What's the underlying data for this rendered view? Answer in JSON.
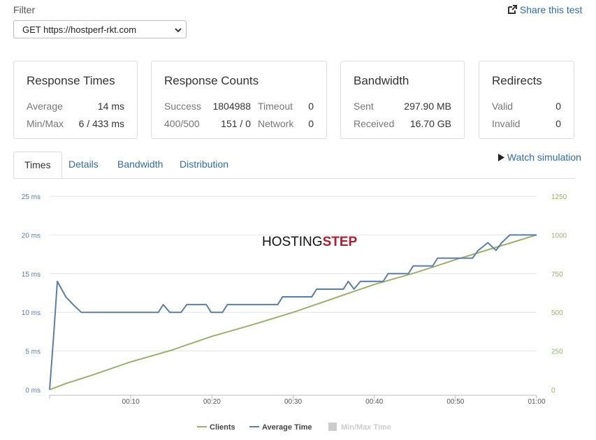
{
  "filter": {
    "label": "Filter",
    "selected": "GET https://hostperf-rkt.com"
  },
  "share": "Share this test",
  "cards": [
    {
      "title": "Response Times",
      "rows": [
        [
          "Average",
          "14 ms"
        ],
        [
          "Min/Max",
          "6 / 433 ms"
        ]
      ]
    },
    {
      "title": "Response Counts",
      "rows": [
        [
          "Success",
          "1804988",
          "Timeout",
          "0"
        ],
        [
          "400/500",
          "151 / 0",
          "Network",
          "0"
        ]
      ]
    },
    {
      "title": "Bandwidth",
      "rows": [
        [
          "Sent",
          "297.90 MB"
        ],
        [
          "Received",
          "16.70 GB"
        ]
      ]
    },
    {
      "title": "Redirects",
      "rows": [
        [
          "Valid",
          "0"
        ],
        [
          "Invalid",
          "0"
        ]
      ]
    }
  ],
  "tabs": [
    "Times",
    "Details",
    "Bandwidth",
    "Distribution"
  ],
  "active_tab": "Times",
  "watch": "Watch simulation",
  "watermark": [
    "HOSTING",
    "STEP"
  ],
  "chart_data": {
    "type": "line",
    "xlim": [
      0,
      60
    ],
    "xticks": [
      {
        "value": 10,
        "label": "00:10"
      },
      {
        "value": 20,
        "label": "00:20"
      },
      {
        "value": 30,
        "label": "00:30"
      },
      {
        "value": 40,
        "label": "00:40"
      },
      {
        "value": 50,
        "label": "00:50"
      },
      {
        "value": 60,
        "label": "01:00"
      }
    ],
    "ylim": [
      0,
      25
    ],
    "yticks": [
      {
        "value": 0,
        "label": "0 ms"
      },
      {
        "value": 5,
        "label": "5 ms"
      },
      {
        "value": 10,
        "label": "10 ms"
      },
      {
        "value": 15,
        "label": "15 ms"
      },
      {
        "value": 20,
        "label": "20 ms"
      },
      {
        "value": 25,
        "label": "25 ms"
      }
    ],
    "y2lim": [
      0,
      1250
    ],
    "y2ticks": [
      0,
      250,
      500,
      750,
      1000,
      1250
    ],
    "grid": true,
    "series": [
      {
        "name": "Clients",
        "color": "#9bb06b",
        "axis": "y2",
        "x": [
          0,
          2,
          5,
          10,
          15,
          20,
          25,
          30,
          35,
          40,
          45,
          50,
          55,
          60
        ],
        "values": [
          0,
          40,
          90,
          180,
          255,
          345,
          420,
          500,
          590,
          680,
          755,
          840,
          920,
          1000
        ]
      },
      {
        "name": "Average Time",
        "color": "#5a7fa6",
        "axis": "y",
        "x": [
          0,
          0.5,
          0.95,
          2,
          2.9,
          3.9,
          13.4,
          14,
          14.8,
          16.2,
          16.9,
          19.3,
          19.9,
          21.3,
          21.9,
          28.1,
          28.7,
          32.3,
          32.9,
          36.2,
          36.8,
          37.5,
          38.3,
          41.1,
          41.7,
          44.2,
          44.8,
          47.2,
          47.8,
          52.1,
          52.8,
          54,
          55,
          55.7,
          56.7,
          60
        ],
        "values": [
          0,
          7,
          14,
          12,
          11,
          10,
          10,
          11,
          10,
          10,
          11,
          11,
          10,
          10,
          11,
          11,
          12,
          12,
          13,
          13,
          14,
          13,
          14,
          14,
          15,
          15,
          16,
          16,
          17,
          17,
          18,
          19,
          18,
          19,
          20,
          20
        ]
      }
    ],
    "hidden_series": [
      {
        "name": "Min/Max Time",
        "color": "#cccccc"
      }
    ]
  }
}
